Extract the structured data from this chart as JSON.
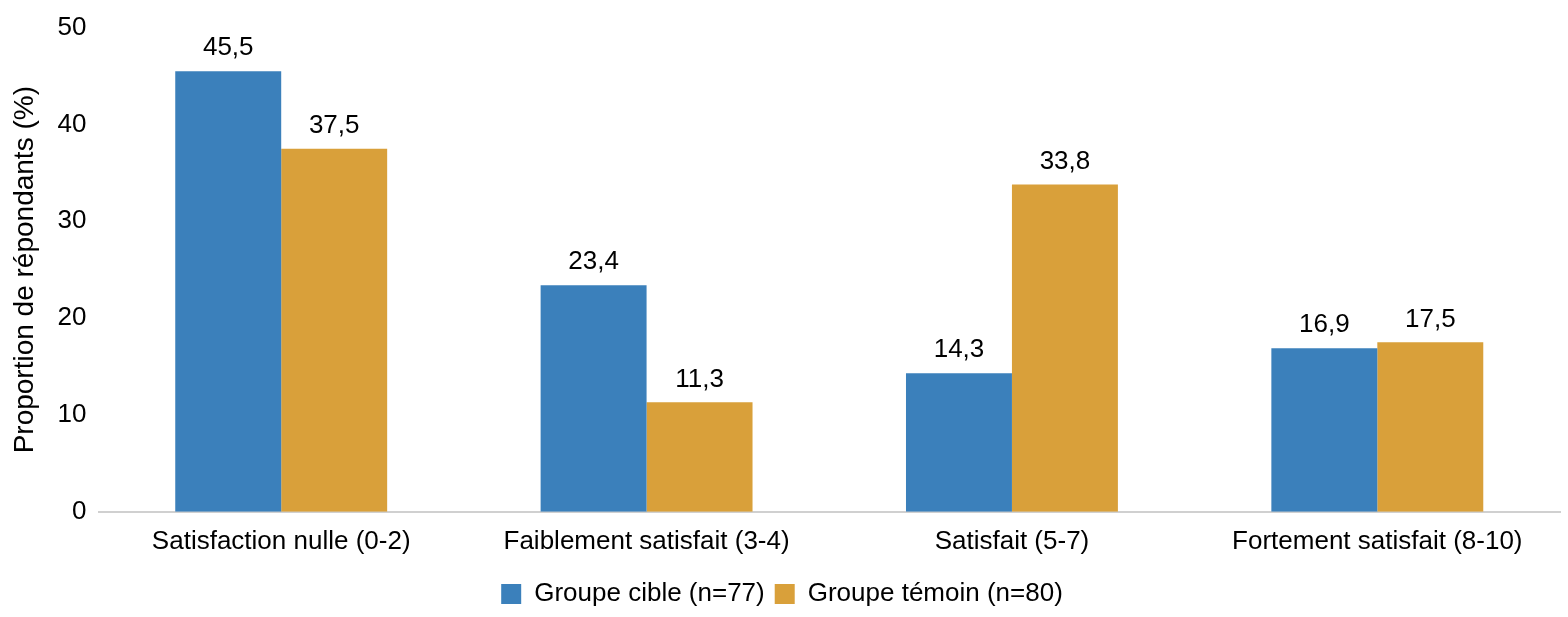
{
  "chart_data": {
    "type": "bar",
    "ylabel": "Proportion de répondants (%)",
    "categories": [
      "Satisfaction nulle (0-2)",
      "Faiblement satisfait (3-4)",
      "Satisfait (5-7)",
      "Fortement satisfait (8-10)"
    ],
    "series": [
      {
        "name": "Groupe cible (n=77)",
        "color": "#3b80bb",
        "values": [
          45.5,
          23.4,
          14.3,
          16.9
        ],
        "value_labels": [
          "45,5",
          "23,4",
          "14,3",
          "16,9"
        ]
      },
      {
        "name": "Groupe témoin (n=80)",
        "color": "#d9a03a",
        "values": [
          37.5,
          11.3,
          33.8,
          17.5
        ],
        "value_labels": [
          "37,5",
          "11,3",
          "33,8",
          "17,5"
        ]
      }
    ],
    "ylim": [
      0,
      50
    ],
    "yticks": [
      0,
      10,
      20,
      30,
      40,
      50
    ],
    "grid": false,
    "legend": "bottom"
  }
}
